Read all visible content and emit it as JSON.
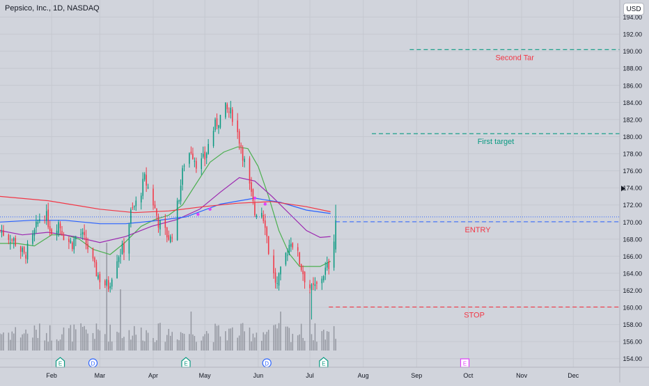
{
  "header": {
    "title": "Pepsico, Inc., 1D, NASDAQ",
    "currency_button": "USD"
  },
  "chart_data": {
    "type": "candlestick",
    "title": "Pepsico, Inc., 1D, NASDAQ",
    "xlabel": "",
    "ylabel": "",
    "ylim": [
      153,
      196
    ],
    "y_ticks": [
      154,
      156,
      158,
      160,
      162,
      164,
      166,
      168,
      170,
      172,
      174,
      176,
      178,
      180,
      182,
      184,
      186,
      188,
      190,
      192,
      194
    ],
    "x_ticks": [
      "Feb",
      "Mar",
      "Apr",
      "May",
      "Jun",
      "Jul",
      "Aug",
      "Sep",
      "Oct",
      "Nov",
      "Dec"
    ],
    "x_tick_days": [
      32,
      60,
      91,
      121,
      152,
      182,
      213,
      244,
      274,
      305,
      335
    ],
    "x_range_days": [
      2,
      362
    ],
    "grid": true,
    "levels": [
      {
        "name": "Second Tar",
        "price": 190.19,
        "label": "190.19",
        "color": "#089981",
        "text_color": "#f23645",
        "start_day": 240
      },
      {
        "name": "First target",
        "price": 180.35,
        "label": "180.35",
        "color": "#089981",
        "text_color": "#089981",
        "start_day": 218
      },
      {
        "name": "ENTRY",
        "price": 170.03,
        "label": "170.03",
        "color": "#2962ff",
        "text_color": "#f23645",
        "start_day": 197
      },
      {
        "name": "STOP",
        "price": 160.05,
        "label": "160.05",
        "color": "#f23645",
        "text_color": "#f23645",
        "start_day": 193
      }
    ],
    "current_price_line": {
      "price": 170.6,
      "color": "#2962ff"
    },
    "events": [
      {
        "day": 37,
        "type": "earnings",
        "label": "E"
      },
      {
        "day": 56,
        "type": "dividend",
        "label": "D"
      },
      {
        "day": 110,
        "type": "earnings",
        "label": "E"
      },
      {
        "day": 157,
        "type": "dividend",
        "label": "D"
      },
      {
        "day": 190,
        "type": "earnings",
        "label": "E"
      },
      {
        "day": 272,
        "type": "earnings-future",
        "label": "E"
      }
    ],
    "waypoints": [
      [
        2,
        169
      ],
      [
        6,
        168.5
      ],
      [
        12,
        167.5
      ],
      [
        16,
        166
      ],
      [
        20,
        167.5
      ],
      [
        25,
        170.5
      ],
      [
        28,
        171
      ],
      [
        32,
        169
      ],
      [
        36,
        170
      ],
      [
        40,
        168
      ],
      [
        44,
        167.5
      ],
      [
        48,
        169
      ],
      [
        53,
        167
      ],
      [
        57,
        164.5
      ],
      [
        61,
        163
      ],
      [
        65,
        162.5
      ],
      [
        70,
        166
      ],
      [
        74,
        167
      ],
      [
        78,
        171
      ],
      [
        82,
        172.5
      ],
      [
        86,
        175
      ],
      [
        90,
        173
      ],
      [
        94,
        170
      ],
      [
        97,
        169
      ],
      [
        101,
        168
      ],
      [
        104,
        170.5
      ],
      [
        109,
        177
      ],
      [
        113,
        178.5
      ],
      [
        117,
        176.5
      ],
      [
        121,
        177.5
      ],
      [
        125,
        180.5
      ],
      [
        129,
        182
      ],
      [
        133,
        183.2
      ],
      [
        137,
        182.5
      ],
      [
        142,
        179
      ],
      [
        146,
        175
      ],
      [
        150,
        171
      ],
      [
        153,
        172
      ],
      [
        156,
        170
      ],
      [
        159,
        165
      ],
      [
        163,
        162.5
      ],
      [
        167,
        165.5
      ],
      [
        171,
        168
      ],
      [
        175,
        166
      ],
      [
        179,
        163.5
      ],
      [
        183,
        162
      ],
      [
        186,
        162.5
      ],
      [
        190,
        164
      ],
      [
        193,
        165
      ],
      [
        195,
        166.5
      ],
      [
        197,
        170.2
      ]
    ],
    "series": [
      {
        "name": "green MA",
        "color": "#4caf50",
        "points": [
          [
            2,
            167.5
          ],
          [
            12,
            167.5
          ],
          [
            22,
            167.2
          ],
          [
            32,
            168.5
          ],
          [
            40,
            168.5
          ],
          [
            48,
            168
          ],
          [
            56,
            166.8
          ],
          [
            66,
            166.2
          ],
          [
            74,
            167.5
          ],
          [
            84,
            169.5
          ],
          [
            92,
            170.3
          ],
          [
            100,
            170.8
          ],
          [
            108,
            172
          ],
          [
            116,
            174.5
          ],
          [
            124,
            177
          ],
          [
            132,
            178.2
          ],
          [
            140,
            178.8
          ],
          [
            146,
            178.6
          ],
          [
            152,
            176.5
          ],
          [
            158,
            173
          ],
          [
            164,
            169
          ],
          [
            170,
            166.3
          ],
          [
            176,
            164.8
          ],
          [
            182,
            164.8
          ],
          [
            188,
            164.8
          ],
          [
            194,
            165.4
          ]
        ]
      },
      {
        "name": "purple MA",
        "color": "#9c27b0",
        "points": [
          [
            2,
            169
          ],
          [
            15,
            168.5
          ],
          [
            30,
            168.8
          ],
          [
            45,
            168.3
          ],
          [
            60,
            167.6
          ],
          [
            75,
            168.3
          ],
          [
            90,
            169.5
          ],
          [
            105,
            170.3
          ],
          [
            118,
            171.5
          ],
          [
            130,
            173.5
          ],
          [
            141,
            175.2
          ],
          [
            150,
            174.8
          ],
          [
            160,
            173
          ],
          [
            170,
            171
          ],
          [
            180,
            169
          ],
          [
            188,
            168.2
          ],
          [
            194,
            168.3
          ]
        ]
      },
      {
        "name": "blue MA",
        "color": "#2962ff",
        "points": [
          [
            2,
            170
          ],
          [
            20,
            170.2
          ],
          [
            40,
            170.2
          ],
          [
            60,
            169.8
          ],
          [
            75,
            169.8
          ],
          [
            90,
            170.1
          ],
          [
            110,
            170.6
          ],
          [
            130,
            172.1
          ],
          [
            150,
            172.8
          ],
          [
            165,
            172.3
          ],
          [
            180,
            171.4
          ],
          [
            194,
            171
          ]
        ]
      },
      {
        "name": "red MA",
        "color": "#f23645",
        "points": [
          [
            2,
            173
          ],
          [
            30,
            172.5
          ],
          [
            60,
            171.5
          ],
          [
            80,
            171.1
          ],
          [
            100,
            171.3
          ],
          [
            120,
            171.8
          ],
          [
            140,
            172.2
          ],
          [
            160,
            172.4
          ],
          [
            180,
            171.8
          ],
          [
            194,
            171.2
          ]
        ]
      }
    ],
    "annotations": [
      "Second Tar",
      "First target",
      "ENTRY",
      "STOP"
    ]
  }
}
